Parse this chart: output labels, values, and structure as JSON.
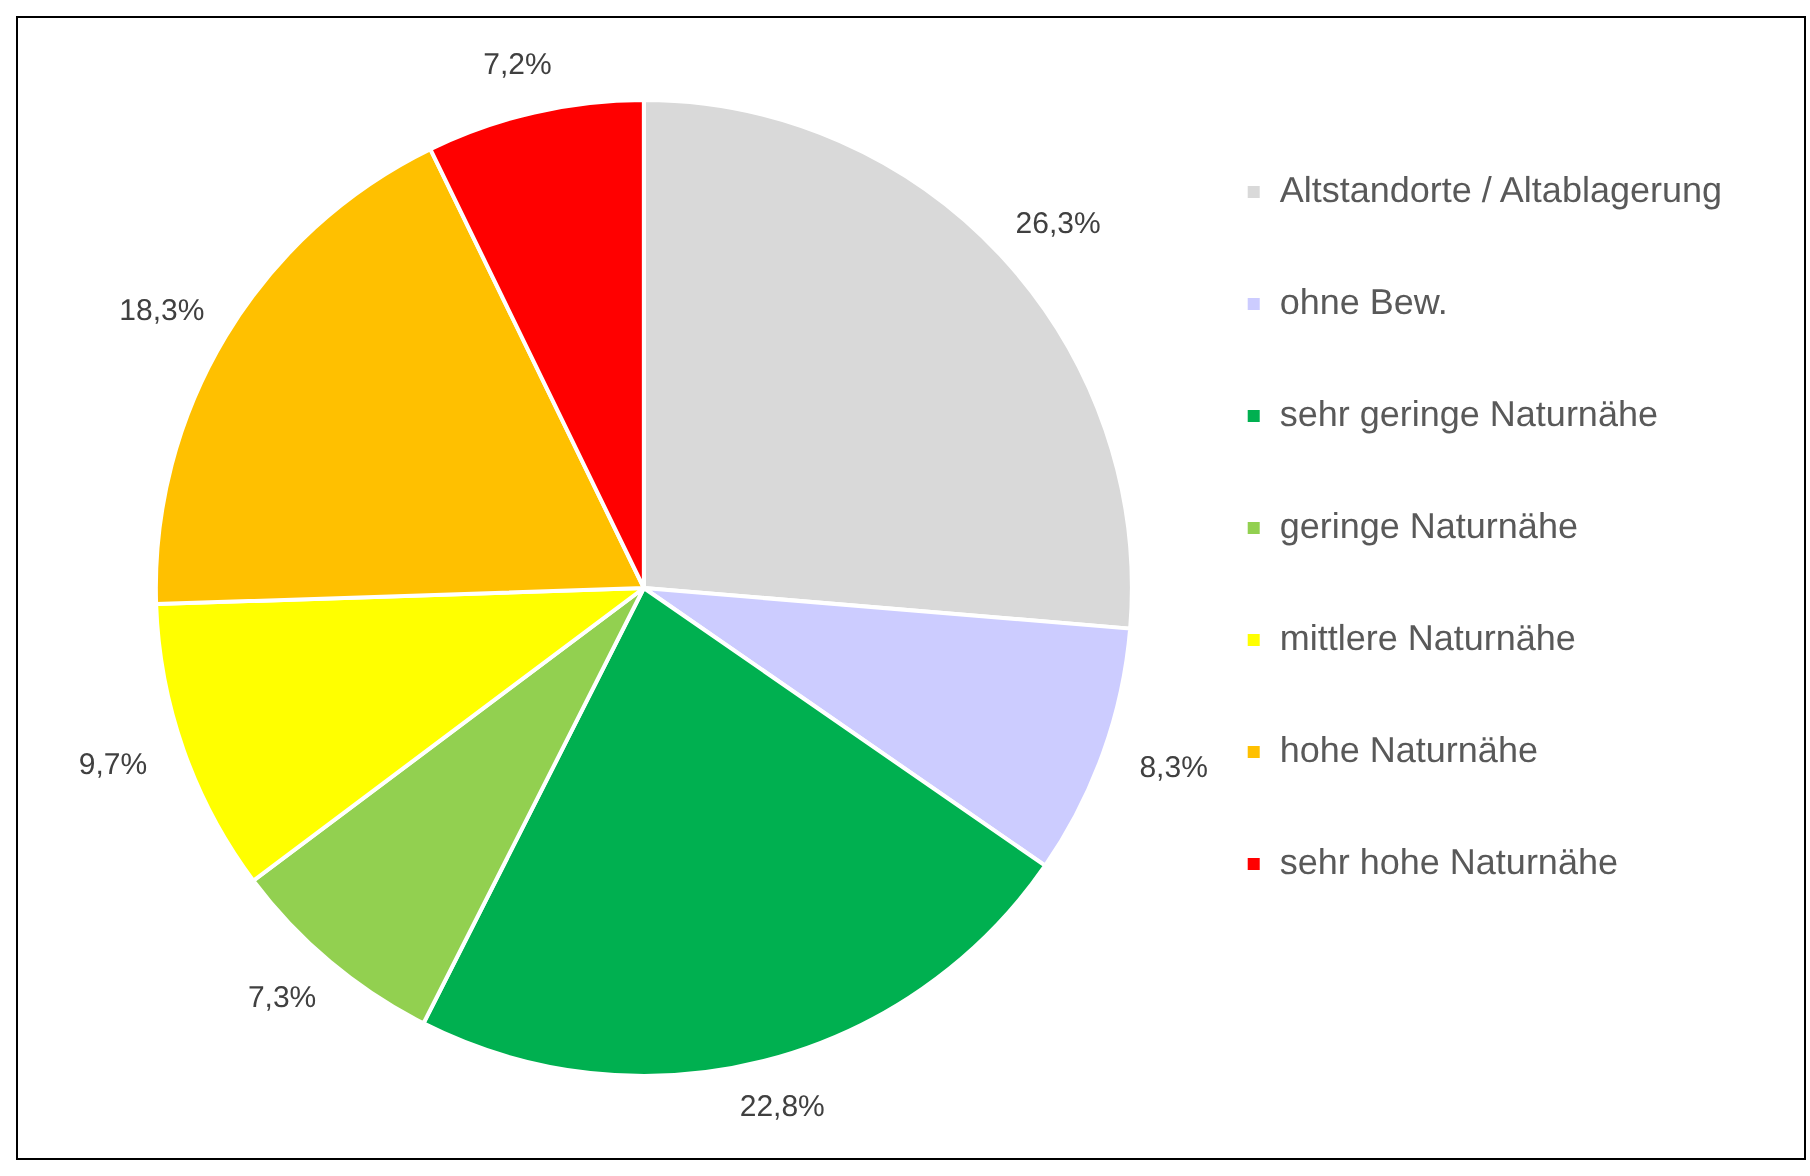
{
  "chart_data": {
    "type": "pie",
    "categories": [
      "Altstandorte / Altablagerung",
      "ohne Bew.",
      "sehr geringe Naturnähe",
      "geringe Naturnähe",
      "mittlere Naturnähe",
      "hohe Naturnähe",
      "sehr hohe Naturnähe"
    ],
    "values": [
      26.3,
      8.3,
      22.8,
      7.3,
      9.7,
      18.3,
      7.2
    ],
    "colors": [
      "#d9d9d9",
      "#ccccff",
      "#00b050",
      "#92d050",
      "#ffff00",
      "#ffc000",
      "#ff0000"
    ],
    "value_labels": [
      "26,3%",
      "8,3%",
      "22,8%",
      "7,3%",
      "9,7%",
      "18,3%",
      "7,2%"
    ],
    "legend": "right"
  }
}
